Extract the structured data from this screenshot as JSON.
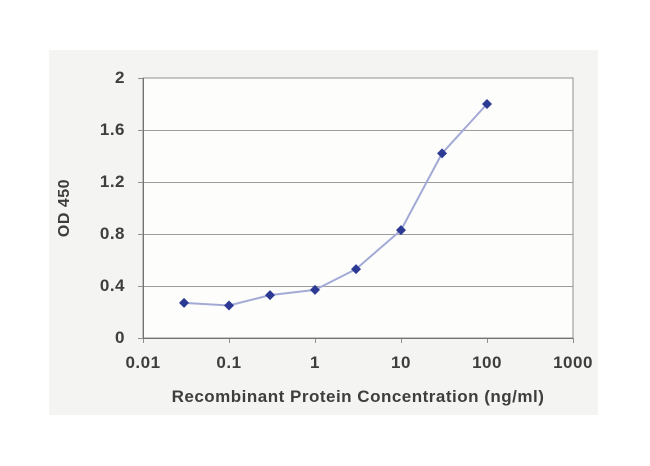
{
  "page": {
    "background": "#ffffff"
  },
  "chart": {
    "colors": {
      "region_bg": "#f4f4f2",
      "plot_bg": "#fdfdfc",
      "plot_border": "#8f8f8f",
      "grid": "#9c9c9c",
      "axis": "#737373",
      "tick": "#8f8f8f",
      "series_line": "#a3aad6",
      "marker": "#2c3a94",
      "text": "#3e3e3e"
    }
  },
  "chart_data": {
    "type": "line",
    "title": "",
    "xlabel": "Recombinant Protein Concentration (ng/ml)",
    "ylabel": "OD 450",
    "x_scale": "log",
    "xlim": [
      0.01,
      1000
    ],
    "ylim": [
      0,
      2
    ],
    "x_tick_values": [
      0.01,
      0.1,
      1,
      10,
      100,
      1000
    ],
    "x_tick_labels": [
      "0.01",
      "0.1",
      "1",
      "10",
      "100",
      "1000"
    ],
    "y_tick_values": [
      0,
      0.4,
      0.8,
      1.2,
      1.6,
      2
    ],
    "y_tick_labels": [
      "0",
      "0.4",
      "0.8",
      "1.2",
      "1.6",
      "2"
    ],
    "grid": "horizontal",
    "legend": "none",
    "marker": "diamond",
    "series": [
      {
        "name": "OD 450",
        "x": [
          0.03,
          0.1,
          0.3,
          1,
          3,
          10,
          30,
          100
        ],
        "y": [
          0.27,
          0.25,
          0.33,
          0.37,
          0.53,
          0.83,
          1.42,
          1.8
        ]
      }
    ]
  }
}
